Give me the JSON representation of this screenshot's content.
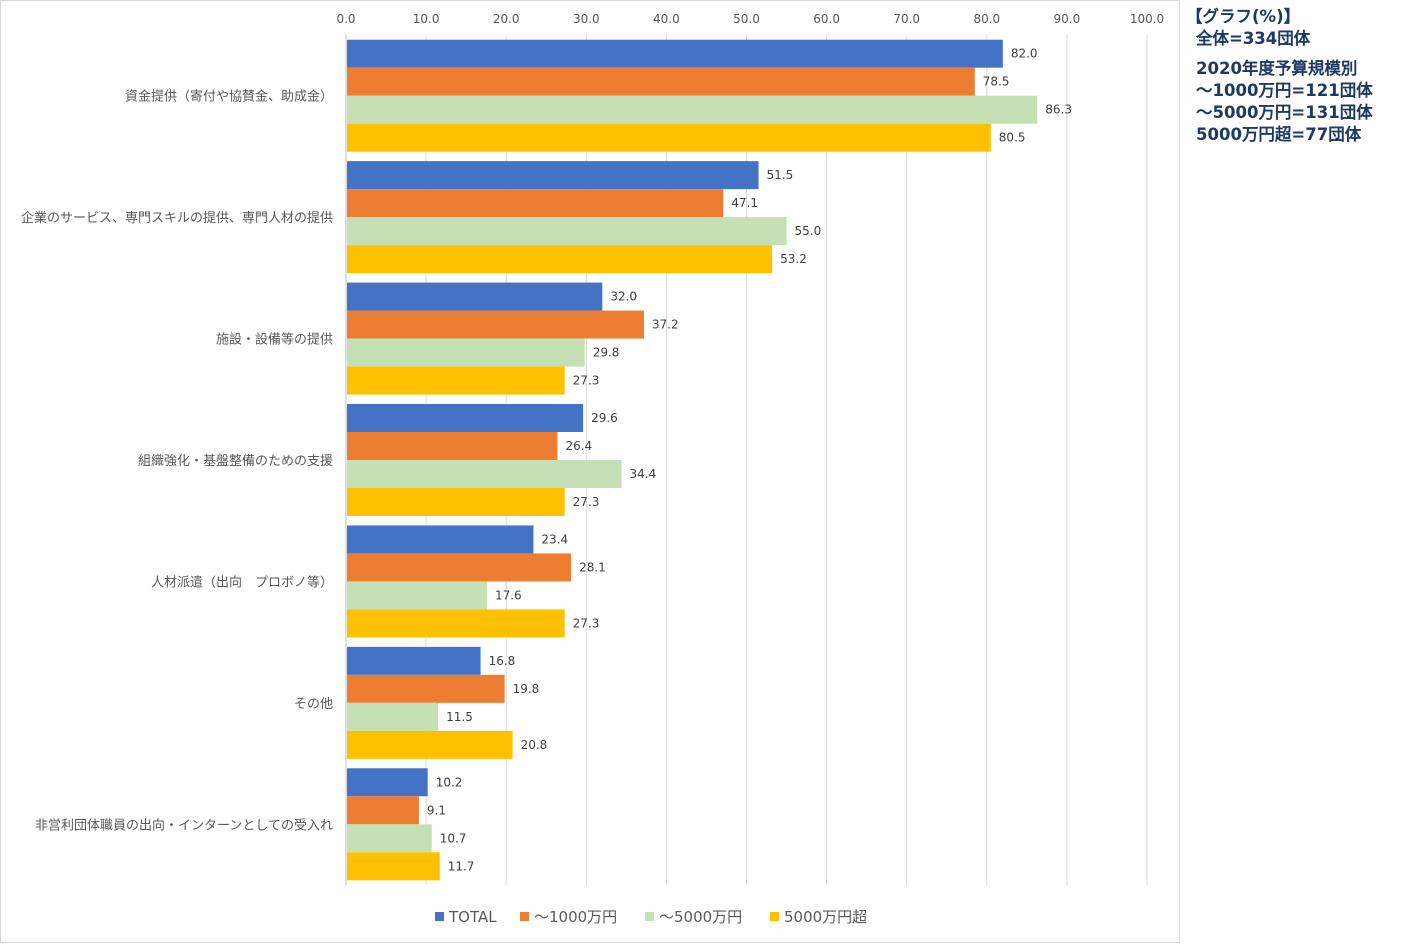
{
  "notes": {
    "title": "【グラフ(%)】",
    "total": "全体=334団体",
    "breakdown_title": "2020年度予算規模別",
    "line1": "～1000万円=121団体",
    "line2": "～5000万円=131団体",
    "line3": "5000万円超=77団体"
  },
  "chart_data": {
    "type": "bar",
    "orientation": "horizontal",
    "categories": [
      "資金提供（寄付や協賛金、助成金）",
      "企業のサービス、専門スキルの提供、専門人材の提供",
      "施設・設備等の提供",
      "組織強化・基盤整備のための支援",
      "人材派遣（出向　プロボノ等）",
      "その他",
      "非営利団体職員の出向・インターンとしての受入れ"
    ],
    "series": [
      {
        "name": "TOTAL",
        "color": "#4472c4",
        "values": [
          82.0,
          51.5,
          32.0,
          29.6,
          23.4,
          16.8,
          10.2
        ]
      },
      {
        "name": "～1000万円",
        "color": "#ed7d31",
        "values": [
          78.5,
          47.1,
          37.2,
          26.4,
          28.1,
          19.8,
          9.1
        ]
      },
      {
        "name": "～5000万円",
        "color": "#c5e0b4",
        "values": [
          86.3,
          55.0,
          29.8,
          34.4,
          17.6,
          11.5,
          10.7
        ]
      },
      {
        "name": "5000万円超",
        "color": "#ffc000",
        "values": [
          80.5,
          53.2,
          27.3,
          27.3,
          27.3,
          20.8,
          11.7
        ]
      }
    ],
    "xlim": [
      0,
      100
    ],
    "xticks": [
      "0.0",
      "10.0",
      "20.0",
      "30.0",
      "40.0",
      "50.0",
      "60.0",
      "70.0",
      "80.0",
      "90.0",
      "100.0"
    ],
    "axis_position": "top",
    "grid": true,
    "legend_position": "bottom"
  }
}
